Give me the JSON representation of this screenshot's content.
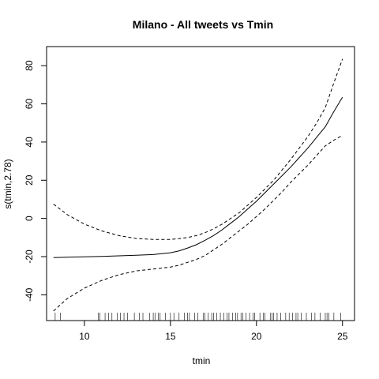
{
  "chart_data": {
    "type": "line",
    "title": "Milano - All tweets vs Tmin",
    "xlabel": "tmin",
    "ylabel": "s(tmin,2.78)",
    "xlim": [
      7.8,
      25.7
    ],
    "ylim": [
      -53.5,
      90
    ],
    "x_ticks": [
      10,
      15,
      20,
      25
    ],
    "y_ticks": [
      -40,
      -20,
      0,
      20,
      40,
      60,
      80
    ],
    "grid": false,
    "legend": "none",
    "series": [
      {
        "style": "solid",
        "x": [
          8.2,
          9,
          10,
          11,
          12,
          13,
          14,
          15,
          15.5,
          16,
          16.5,
          17,
          17.5,
          18,
          18.5,
          19,
          19.5,
          20,
          20.5,
          21,
          21.5,
          22,
          22.5,
          23,
          23.5,
          24,
          24.5,
          25
        ],
        "y": [
          -20.5,
          -20.3,
          -20.1,
          -19.9,
          -19.6,
          -19.3,
          -18.9,
          -18.0,
          -17.0,
          -15.5,
          -13.8,
          -11.5,
          -9.0,
          -6.0,
          -2.5,
          1.0,
          5.0,
          9.0,
          13.5,
          18.0,
          22.5,
          27.0,
          32.0,
          37.0,
          42.5,
          48.0,
          56.0,
          63.5
        ]
      },
      {
        "style": "dashed",
        "x": [
          8.2,
          9,
          10,
          11,
          12,
          13,
          14,
          15,
          15.5,
          16,
          16.5,
          17,
          17.5,
          18,
          18.5,
          19,
          19.5,
          20,
          20.5,
          21,
          21.5,
          22,
          22.5,
          23,
          23.5,
          24,
          24.5,
          25
        ],
        "y": [
          7.5,
          2.0,
          -3.0,
          -6.5,
          -9.0,
          -10.5,
          -11.0,
          -11.0,
          -10.6,
          -10.0,
          -9.0,
          -7.5,
          -5.5,
          -3.0,
          0.0,
          3.0,
          7.0,
          11.0,
          15.5,
          20.0,
          25.5,
          31.0,
          37.0,
          43.0,
          50.0,
          58.0,
          71.0,
          83.5
        ]
      },
      {
        "style": "dashed",
        "x": [
          8.2,
          9,
          10,
          11,
          12,
          13,
          14,
          15,
          15.5,
          16,
          16.5,
          17,
          17.5,
          18,
          18.5,
          19,
          19.5,
          20,
          20.5,
          21,
          21.5,
          22,
          22.5,
          23,
          23.5,
          24,
          24.5,
          25
        ],
        "y": [
          -48.5,
          -42.0,
          -36.5,
          -32.5,
          -29.5,
          -27.5,
          -26.5,
          -25.5,
          -24.5,
          -23.0,
          -21.5,
          -19.5,
          -16.5,
          -13.5,
          -10.0,
          -6.5,
          -3.0,
          1.0,
          5.0,
          9.5,
          14.0,
          19.0,
          23.5,
          28.0,
          33.0,
          38.0,
          41.0,
          43.5
        ]
      }
    ],
    "rug_x": [
      8.3,
      8.6,
      10.8,
      10.9,
      11.2,
      11.4,
      11.6,
      11.9,
      12.1,
      12.3,
      12.5,
      12.9,
      13.2,
      13.4,
      13.8,
      14.0,
      14.1,
      14.3,
      14.4,
      14.7,
      15.0,
      15.2,
      15.5,
      15.8,
      16.0,
      16.1,
      16.4,
      16.6,
      16.9,
      17.0,
      17.2,
      17.4,
      17.5,
      17.7,
      17.9,
      18.1,
      18.3,
      18.4,
      18.6,
      18.8,
      18.9,
      19.1,
      19.2,
      19.4,
      19.6,
      19.8,
      19.9,
      20.2,
      20.4,
      20.5,
      20.8,
      20.9,
      21.0,
      21.2,
      21.4,
      21.7,
      21.9,
      22.1,
      22.3,
      22.4,
      22.6,
      22.9,
      23.2,
      23.4,
      23.7,
      24.0,
      24.1,
      24.2,
      24.5,
      24.9
    ]
  }
}
